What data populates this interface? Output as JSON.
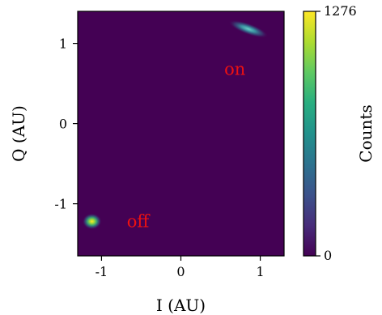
{
  "chart_data": {
    "type": "heatmap",
    "title": "",
    "xlabel": "I (AU)",
    "ylabel": "Q (AU)",
    "xlim": [
      -1.3,
      1.3
    ],
    "ylim": [
      -1.65,
      1.4
    ],
    "x_ticks": [
      {
        "value": -1,
        "label": "-1"
      },
      {
        "value": 0,
        "label": "0"
      },
      {
        "value": 1,
        "label": "1"
      }
    ],
    "y_ticks": [
      {
        "value": -1,
        "label": "-1"
      },
      {
        "value": 0,
        "label": "0"
      },
      {
        "value": 1,
        "label": "1"
      }
    ],
    "colormap": "viridis",
    "background_color": "#440154",
    "colorbar": {
      "label": "Counts",
      "min": 0,
      "max": 1276,
      "ticks": [
        {
          "value": 0,
          "label": "0"
        },
        {
          "value": 1276,
          "label": "1276"
        }
      ]
    },
    "clusters": [
      {
        "name": "on",
        "center": [
          0.85,
          1.18
        ],
        "peak": 0.45
      },
      {
        "name": "off",
        "center": [
          -1.12,
          -1.22
        ],
        "peak": 1.0
      }
    ],
    "annotations": [
      {
        "text": "on",
        "x": 0.68,
        "y": 0.68,
        "color": "#ee1111"
      },
      {
        "text": "off",
        "x": -0.54,
        "y": -1.22,
        "color": "#ee1111"
      }
    ],
    "grid": false
  }
}
